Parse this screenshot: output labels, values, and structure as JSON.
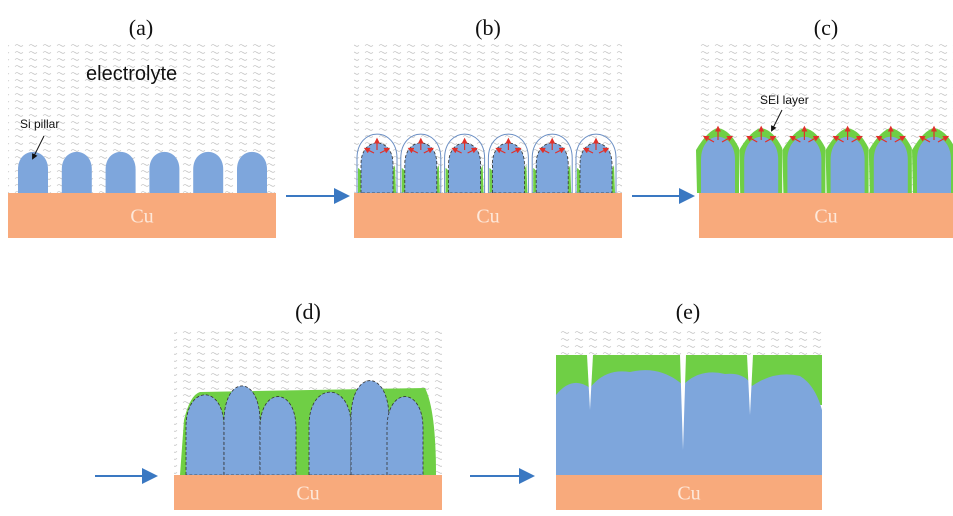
{
  "panels": [
    {
      "label": "(a)",
      "substrate": "Cu"
    },
    {
      "label": "(b)",
      "substrate": "Cu"
    },
    {
      "label": "(c)",
      "substrate": "Cu"
    },
    {
      "label": "(d)",
      "substrate": "Cu"
    },
    {
      "label": "(e)",
      "substrate": "Cu"
    }
  ],
  "annotations": {
    "electrolyte": "electrolyte",
    "si_pillar": "Si pillar",
    "sei_layer": "SEI layer"
  }
}
